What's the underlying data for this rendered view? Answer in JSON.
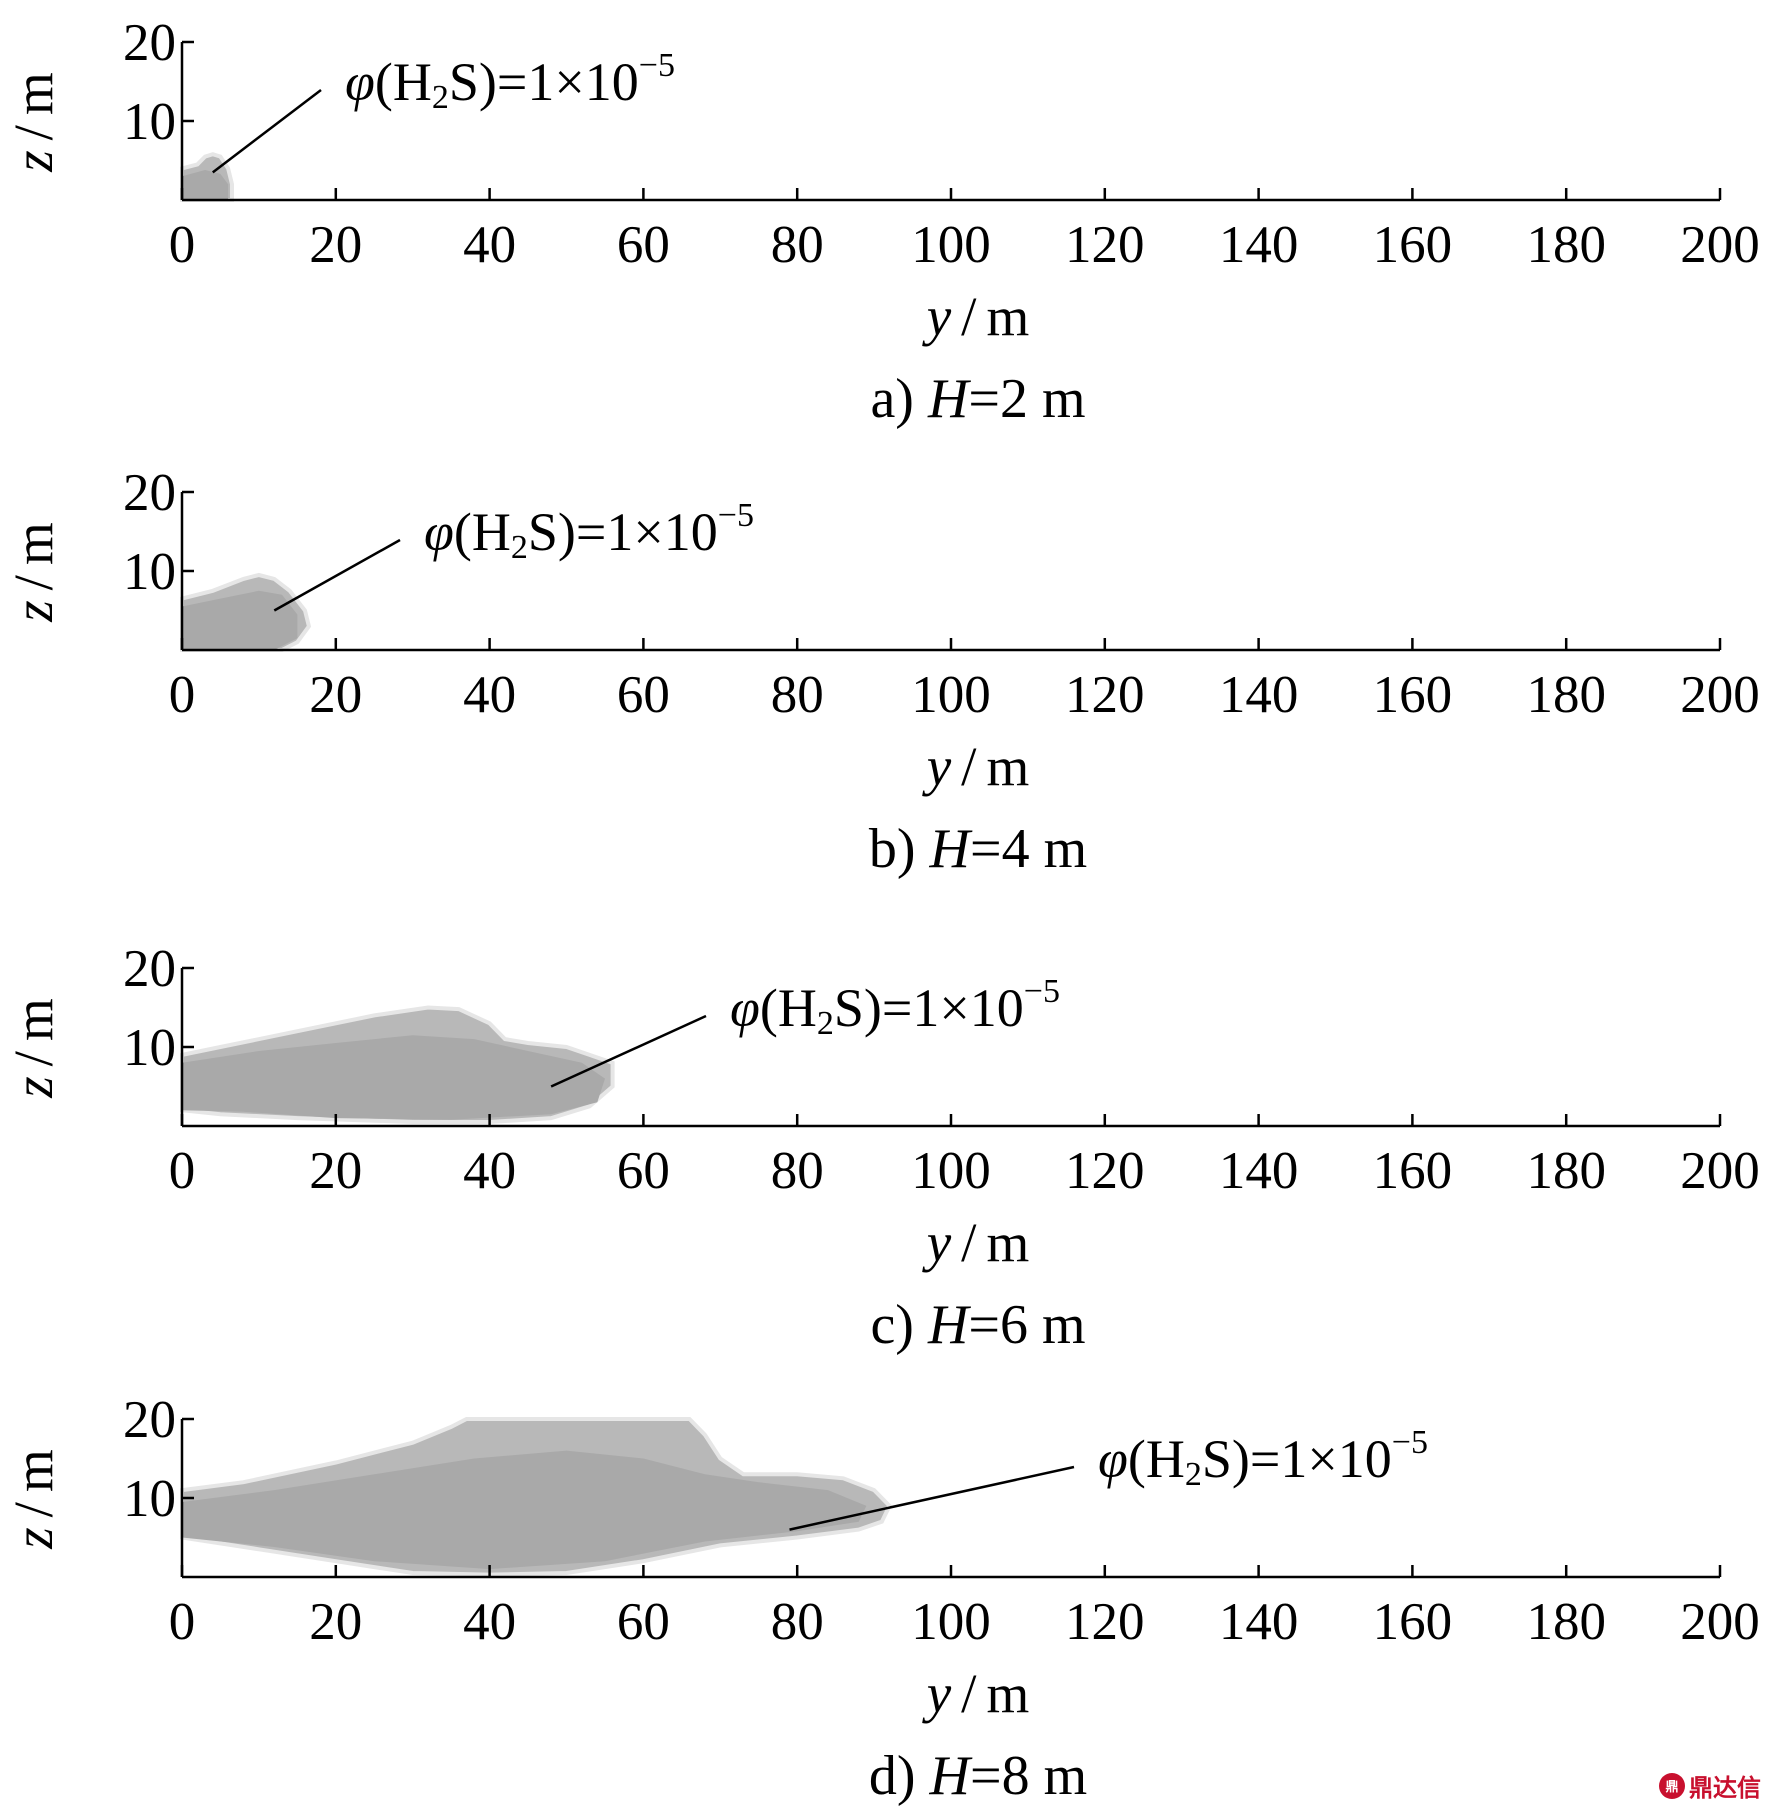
{
  "chart_data": [
    {
      "type": "area",
      "panel": "a",
      "caption_prefix": "a)",
      "caption_var": "H",
      "caption_value": "=2 m",
      "xlabel_var": "y",
      "xlabel_unit": "m",
      "ylabel_var": "z",
      "ylabel_unit": "m",
      "xlim": [
        0,
        200
      ],
      "ylim": [
        0,
        20
      ],
      "xticks": [
        "0",
        "20",
        "40",
        "60",
        "80",
        "100",
        "120",
        "140",
        "160",
        "180",
        "200"
      ],
      "yticks": [
        "10",
        "20"
      ],
      "annotation": {
        "phi": "φ",
        "species_open": "(H",
        "sub": "2",
        "species_close": "S)=1×10",
        "sup": "−5"
      },
      "annotation_anchor": {
        "y": 4,
        "z": 3.5
      },
      "plume": {
        "outer": [
          [
            0,
            0
          ],
          [
            0,
            4
          ],
          [
            2,
            4.5
          ],
          [
            3,
            5.5
          ],
          [
            4,
            5.8
          ],
          [
            5,
            5.5
          ],
          [
            6,
            4
          ],
          [
            6.5,
            2
          ],
          [
            6.5,
            0
          ]
        ],
        "inner": [
          [
            0,
            0
          ],
          [
            0,
            3
          ],
          [
            3,
            3.8
          ],
          [
            5,
            3.3
          ],
          [
            6,
            2
          ],
          [
            6,
            0
          ]
        ]
      }
    },
    {
      "type": "area",
      "panel": "b",
      "caption_prefix": "b)",
      "caption_var": "H",
      "caption_value": "=4 m",
      "xlabel_var": "y",
      "xlabel_unit": "m",
      "ylabel_var": "z",
      "ylabel_unit": "m",
      "xlim": [
        0,
        200
      ],
      "ylim": [
        0,
        20
      ],
      "xticks": [
        "0",
        "20",
        "40",
        "60",
        "80",
        "100",
        "120",
        "140",
        "160",
        "180",
        "200"
      ],
      "yticks": [
        "10",
        "20"
      ],
      "annotation": {
        "phi": "φ",
        "species_open": "(H",
        "sub": "2",
        "species_close": "S)=1×10",
        "sup": "−5"
      },
      "annotation_anchor": {
        "y": 12,
        "z": 5
      },
      "plume": {
        "outer": [
          [
            0,
            0
          ],
          [
            0,
            6.5
          ],
          [
            4,
            7.5
          ],
          [
            8,
            9
          ],
          [
            10,
            9.5
          ],
          [
            12,
            9
          ],
          [
            14,
            7.5
          ],
          [
            16,
            5
          ],
          [
            16.5,
            3
          ],
          [
            15,
            1
          ],
          [
            13,
            0
          ]
        ],
        "inner": [
          [
            0,
            0
          ],
          [
            0,
            5.5
          ],
          [
            5,
            6.5
          ],
          [
            10,
            7.5
          ],
          [
            13,
            7
          ],
          [
            15,
            4.5
          ],
          [
            15,
            1.5
          ],
          [
            12,
            0
          ]
        ]
      }
    },
    {
      "type": "area",
      "panel": "c",
      "caption_prefix": "c)",
      "caption_var": "H",
      "caption_value": "=6 m",
      "xlabel_var": "y",
      "xlabel_unit": "m",
      "ylabel_var": "z",
      "ylabel_unit": "m",
      "xlim": [
        0,
        200
      ],
      "ylim": [
        0,
        20
      ],
      "xticks": [
        "0",
        "20",
        "40",
        "60",
        "80",
        "100",
        "120",
        "140",
        "160",
        "180",
        "200"
      ],
      "yticks": [
        "10",
        "20"
      ],
      "annotation": {
        "phi": "φ",
        "species_open": "(H",
        "sub": "2",
        "species_close": "S)=1×10",
        "sup": "−5"
      },
      "annotation_anchor": {
        "y": 48,
        "z": 5
      },
      "plume": {
        "outer": [
          [
            0,
            2
          ],
          [
            0,
            9
          ],
          [
            5,
            10
          ],
          [
            15,
            12
          ],
          [
            25,
            14
          ],
          [
            32,
            15
          ],
          [
            36,
            14.8
          ],
          [
            40,
            13
          ],
          [
            42,
            11
          ],
          [
            45,
            10.5
          ],
          [
            50,
            10
          ],
          [
            53,
            9
          ],
          [
            56,
            8
          ],
          [
            56,
            5
          ],
          [
            53,
            2.5
          ],
          [
            48,
            1
          ],
          [
            40,
            0.5
          ],
          [
            30,
            0.5
          ],
          [
            15,
            1
          ],
          [
            5,
            1.5
          ]
        ],
        "inner": [
          [
            0,
            2
          ],
          [
            0,
            8
          ],
          [
            10,
            9.5
          ],
          [
            20,
            10.5
          ],
          [
            30,
            11.5
          ],
          [
            38,
            11
          ],
          [
            45,
            9.5
          ],
          [
            52,
            8
          ],
          [
            55,
            6
          ],
          [
            54,
            3
          ],
          [
            48,
            1.5
          ],
          [
            35,
            0.8
          ],
          [
            20,
            1
          ],
          [
            8,
            1.8
          ]
        ]
      }
    },
    {
      "type": "area",
      "panel": "d",
      "caption_prefix": "d)",
      "caption_var": "H",
      "caption_value": "=8 m",
      "xlabel_var": "y",
      "xlabel_unit": "m",
      "ylabel_var": "z",
      "ylabel_unit": "m",
      "xlim": [
        0,
        200
      ],
      "ylim": [
        0,
        20
      ],
      "xticks": [
        "0",
        "20",
        "40",
        "60",
        "80",
        "100",
        "120",
        "140",
        "160",
        "180",
        "200"
      ],
      "yticks": [
        "10",
        "20"
      ],
      "annotation": {
        "phi": "φ",
        "species_open": "(H",
        "sub": "2",
        "species_close": "S)=1×10",
        "sup": "−5"
      },
      "annotation_anchor": {
        "y": 79,
        "z": 6
      },
      "plume": {
        "outer": [
          [
            0,
            5
          ],
          [
            0,
            11
          ],
          [
            8,
            12
          ],
          [
            20,
            14.5
          ],
          [
            30,
            17
          ],
          [
            35,
            19
          ],
          [
            37,
            20
          ],
          [
            66,
            20
          ],
          [
            68,
            18
          ],
          [
            70,
            15
          ],
          [
            73,
            13
          ],
          [
            80,
            13
          ],
          [
            86,
            12.5
          ],
          [
            90,
            11
          ],
          [
            92,
            9
          ],
          [
            91,
            7
          ],
          [
            88,
            6
          ],
          [
            80,
            5
          ],
          [
            70,
            4
          ],
          [
            60,
            2
          ],
          [
            50,
            0.5
          ],
          [
            40,
            0.3
          ],
          [
            30,
            0.5
          ],
          [
            20,
            2
          ],
          [
            10,
            3.5
          ]
        ],
        "inner": [
          [
            0,
            5
          ],
          [
            0,
            9.5
          ],
          [
            12,
            11
          ],
          [
            25,
            13
          ],
          [
            38,
            15
          ],
          [
            50,
            16
          ],
          [
            60,
            15
          ],
          [
            68,
            13
          ],
          [
            75,
            12
          ],
          [
            84,
            11
          ],
          [
            89,
            9
          ],
          [
            88,
            7
          ],
          [
            80,
            5.8
          ],
          [
            68,
            4.5
          ],
          [
            55,
            2
          ],
          [
            40,
            1
          ],
          [
            25,
            2
          ],
          [
            12,
            3.8
          ]
        ]
      }
    }
  ],
  "watermark": {
    "logo": "鼎",
    "text": "鼎达信"
  }
}
